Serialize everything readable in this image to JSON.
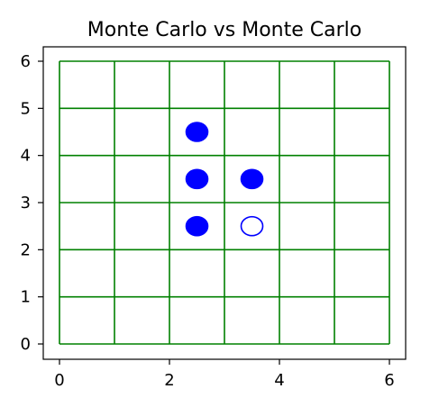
{
  "title": "Monte Carlo vs Monte Carlo",
  "board": {
    "size": 6,
    "grid_color": "#008000",
    "piece_color": "#0000ff"
  },
  "axes": {
    "x_ticks": [
      "0",
      "2",
      "4",
      "6"
    ],
    "y_ticks": [
      "0",
      "1",
      "2",
      "3",
      "4",
      "5",
      "6"
    ],
    "xlim": [
      -0.3,
      6.3
    ],
    "ylim": [
      -0.3,
      6.3
    ]
  },
  "pieces": [
    {
      "x": 2.5,
      "y": 4.5,
      "filled": true
    },
    {
      "x": 2.5,
      "y": 3.5,
      "filled": true
    },
    {
      "x": 3.5,
      "y": 3.5,
      "filled": true
    },
    {
      "x": 2.5,
      "y": 2.5,
      "filled": true
    },
    {
      "x": 3.5,
      "y": 2.5,
      "filled": false
    }
  ]
}
